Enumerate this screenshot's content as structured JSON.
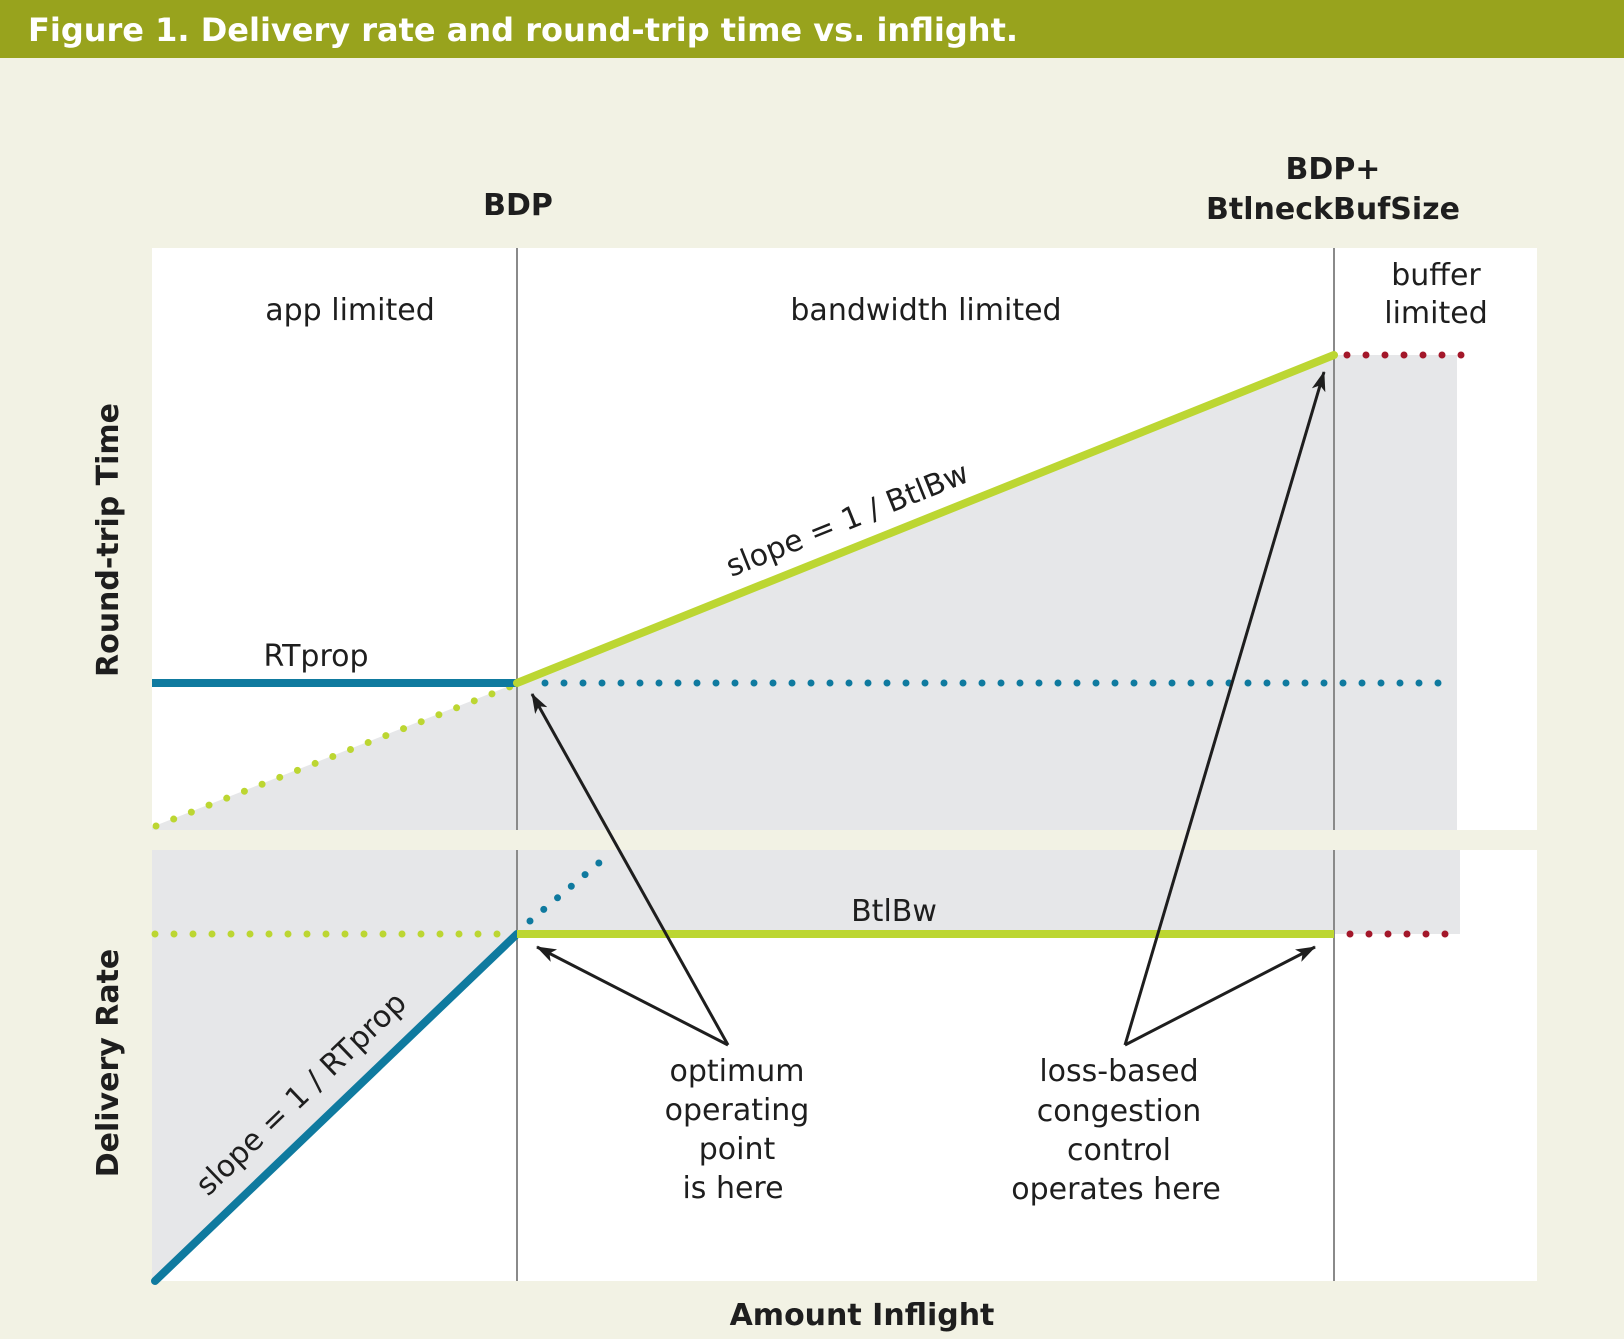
{
  "figure": {
    "title": "Figure 1. Delivery rate and round-trip time vs. inflight."
  },
  "labels": {
    "bdp": "BDP",
    "bdp_buf_line1": "BDP+",
    "bdp_buf_line2": "BtlneckBufSize",
    "region_app": "app limited",
    "region_bandwidth": "bandwidth limited",
    "region_buffer_line1": "buffer",
    "region_buffer_line2": "limited",
    "rtprop": "RTprop",
    "slope_rtt": "slope = 1 / BtlBw",
    "btlbw": "BtlBw",
    "slope_delivery": "slope = 1 / RTprop",
    "y_axis_top": "Round-trip Time",
    "y_axis_bottom": "Delivery Rate",
    "x_axis": "Amount Inflight",
    "optimum": [
      "optimum",
      "operating",
      "point",
      "is here"
    ],
    "lossbased": [
      "loss-based",
      "congestion",
      "control",
      "operates here"
    ]
  },
  "colors": {
    "title_bar": "#98a31d",
    "background": "#f2f2e4",
    "panel": "#ffffff",
    "shade": "#e6e7e9",
    "blue": "#0f7a9f",
    "green": "#bcd632",
    "red": "#a3172a",
    "divider": "#8a8a8a",
    "arrow": "#1e1e1e"
  }
}
